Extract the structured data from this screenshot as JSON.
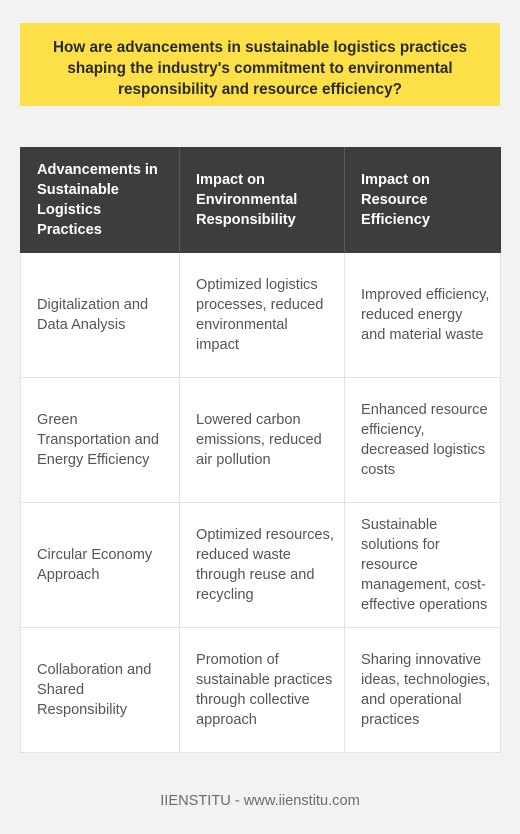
{
  "title": "How are advancements in sustainable logistics practices shaping the industry's commitment to environmental responsibility and resource efficiency?",
  "table": {
    "headers": [
      "Advancements in Sustainable Logistics Practices",
      "Impact on Environmental Responsibility",
      "Impact on Resource Efficiency"
    ],
    "rows": [
      [
        "Digitalization and Data Analysis",
        "Optimized logistics processes, reduced environmental impact",
        "Improved efficiency, reduced energy and material waste"
      ],
      [
        "Green Transportation and Energy Efficiency",
        "Lowered carbon emissions, reduced air pollution",
        "Enhanced resource efficiency, decreased logistics costs"
      ],
      [
        "Circular Economy Approach",
        "Optimized resources, reduced waste through reuse and recycling",
        "Sustainable solutions for resource management, cost-effective operations"
      ],
      [
        "Collaboration and Shared Responsibility",
        "Promotion of sustainable practices through collective approach",
        "Sharing innovative ideas, technologies, and operational practices"
      ]
    ]
  },
  "footer": "IIENSTITU - www.iienstitu.com"
}
